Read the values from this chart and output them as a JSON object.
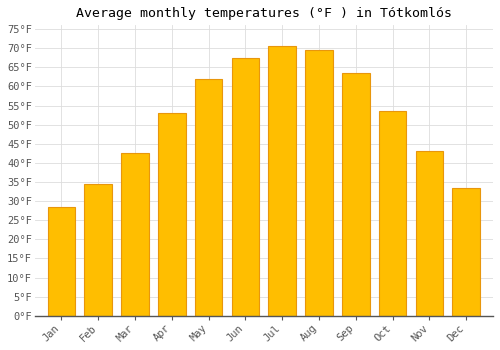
{
  "title": "Average monthly temperatures (°F ) in Tótkomlós",
  "months": [
    "Jan",
    "Feb",
    "Mar",
    "Apr",
    "May",
    "Jun",
    "Jul",
    "Aug",
    "Sep",
    "Oct",
    "Nov",
    "Dec"
  ],
  "values": [
    28.5,
    34.5,
    42.5,
    53.0,
    62.0,
    67.5,
    70.5,
    69.5,
    63.5,
    53.5,
    43.0,
    33.5
  ],
  "bar_color": "#FFBE00",
  "bar_edge_color": "#E8960C",
  "ylim": [
    0,
    76
  ],
  "yticks": [
    0,
    5,
    10,
    15,
    20,
    25,
    30,
    35,
    40,
    45,
    50,
    55,
    60,
    65,
    70,
    75
  ],
  "ytick_labels": [
    "0°F",
    "5°F",
    "10°F",
    "15°F",
    "20°F",
    "25°F",
    "30°F",
    "35°F",
    "40°F",
    "45°F",
    "50°F",
    "55°F",
    "60°F",
    "65°F",
    "70°F",
    "75°F"
  ],
  "bg_color": "#ffffff",
  "grid_color": "#dddddd",
  "title_fontsize": 9.5,
  "tick_fontsize": 7.5,
  "font_family": "monospace",
  "bar_width": 0.75
}
